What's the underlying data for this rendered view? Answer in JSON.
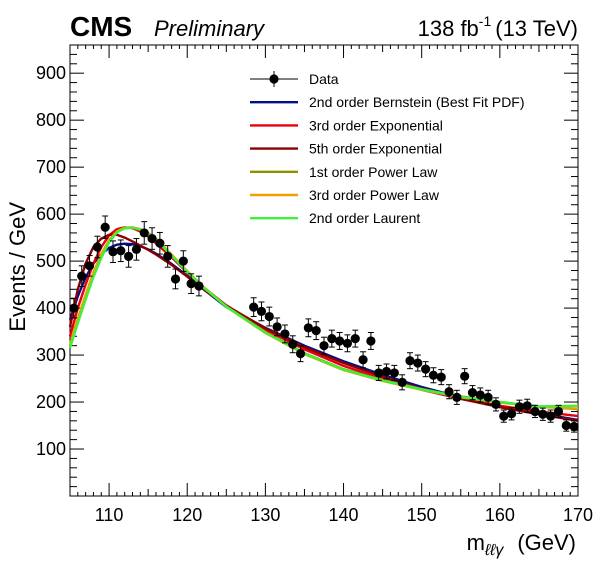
{
  "header": {
    "experiment": "CMS",
    "status": "Preliminary",
    "lumi_value": "138 fb",
    "lumi_exp": "-1",
    "energy": "(13 TeV)"
  },
  "chart_data": {
    "type": "scatter",
    "xlabel_main": "m",
    "xlabel_sub": "ℓℓγ",
    "xlabel_unit": "(GeV)",
    "ylabel": "Events / GeV",
    "xlim": [
      105,
      170
    ],
    "ylim": [
      0,
      960
    ],
    "x_ticks": [
      110,
      120,
      130,
      140,
      150,
      160,
      170
    ],
    "y_ticks": [
      100,
      200,
      300,
      400,
      500,
      600,
      700,
      800,
      900
    ],
    "grid": false,
    "legend_position": "top-right",
    "data": {
      "name": "Data",
      "color": "#000000",
      "x": [
        105.5,
        106.5,
        107.5,
        108.5,
        109.5,
        110.5,
        111.5,
        112.5,
        113.5,
        114.5,
        115.5,
        116.5,
        117.5,
        118.5,
        119.5,
        120.5,
        121.5,
        128.5,
        129.5,
        130.5,
        131.5,
        132.5,
        133.5,
        134.5,
        135.5,
        136.5,
        137.5,
        138.5,
        139.5,
        140.5,
        141.5,
        142.5,
        143.5,
        144.5,
        145.5,
        146.5,
        147.5,
        148.5,
        149.5,
        150.5,
        151.5,
        152.5,
        153.5,
        154.5,
        155.5,
        156.5,
        157.5,
        158.5,
        159.5,
        160.5,
        161.5,
        162.5,
        163.5,
        164.5,
        165.5,
        166.5,
        167.5,
        168.5,
        169.5
      ],
      "y": [
        400,
        468,
        490,
        530,
        572,
        520,
        522,
        510,
        525,
        560,
        548,
        538,
        510,
        462,
        500,
        452,
        447,
        402,
        393,
        382,
        360,
        345,
        323,
        303,
        358,
        352,
        320,
        335,
        330,
        325,
        335,
        290,
        330,
        262,
        265,
        262,
        242,
        288,
        283,
        270,
        257,
        253,
        222,
        210,
        255,
        220,
        215,
        210,
        195,
        170,
        175,
        190,
        192,
        180,
        174,
        170,
        180,
        150,
        148
      ],
      "err": [
        21,
        22,
        22,
        23,
        24,
        23,
        23,
        23,
        23,
        24,
        23,
        23,
        23,
        21,
        22,
        21,
        21,
        20,
        20,
        20,
        19,
        19,
        18,
        17,
        19,
        19,
        18,
        18,
        18,
        18,
        18,
        17,
        18,
        16,
        16,
        16,
        16,
        17,
        17,
        16,
        16,
        16,
        15,
        15,
        16,
        15,
        15,
        15,
        14,
        13,
        13,
        14,
        14,
        13,
        13,
        13,
        13,
        12,
        12
      ]
    },
    "series": [
      {
        "name": "2nd order Bernstein (Best Fit PDF)",
        "color": "#000e8a",
        "x": [
          105,
          106,
          107,
          108,
          109,
          110,
          111,
          112,
          113,
          114,
          115,
          116,
          118,
          120,
          122,
          125,
          130,
          135,
          140,
          145,
          150,
          155,
          160,
          165,
          170
        ],
        "y": [
          375,
          425,
          465,
          495,
          515,
          528,
          535,
          537,
          536,
          532,
          525,
          516,
          494,
          469,
          441,
          402,
          358,
          320,
          287,
          258,
          232,
          210,
          191,
          176,
          162
        ]
      },
      {
        "name": "3rd order Exponential",
        "color": "#e8000b",
        "x": [
          105,
          106,
          107,
          108,
          109,
          110,
          111,
          112,
          113,
          114,
          115,
          116,
          118,
          120,
          122,
          125,
          130,
          135,
          140,
          145,
          150,
          155,
          160,
          165,
          170
        ],
        "y": [
          340,
          400,
          450,
          495,
          530,
          555,
          568,
          572,
          570,
          563,
          552,
          538,
          508,
          476,
          445,
          406,
          354,
          312,
          277,
          249,
          226,
          207,
          192,
          180,
          170
        ]
      },
      {
        "name": "5th order Exponential",
        "color": "#8b0000",
        "x": [
          105,
          106,
          107,
          108,
          109,
          110,
          111,
          112,
          113,
          114,
          115,
          116,
          118,
          120,
          122,
          125,
          130,
          135,
          140,
          145,
          150,
          155,
          160,
          165,
          170
        ],
        "y": [
          360,
          440,
          495,
          530,
          548,
          556,
          556,
          550,
          542,
          533,
          524,
          514,
          492,
          467,
          441,
          405,
          357,
          317,
          283,
          254,
          228,
          207,
          189,
          174,
          160
        ]
      },
      {
        "name": "1st order Power Law",
        "color": "#8f8f00",
        "x": [
          105,
          106,
          107,
          108,
          109,
          110,
          111,
          112,
          113,
          114,
          115,
          116,
          118,
          120,
          122,
          125,
          130,
          135,
          140,
          145,
          150,
          155,
          160,
          165,
          170
        ],
        "y": [
          318,
          372,
          420,
          470,
          510,
          542,
          562,
          570,
          571,
          567,
          558,
          546,
          512,
          478,
          446,
          404,
          349,
          304,
          270,
          247,
          228,
          212,
          200,
          190,
          185
        ]
      },
      {
        "name": "3rd order Power Law",
        "color": "#f0a000",
        "x": [
          105,
          106,
          107,
          108,
          109,
          110,
          111,
          112,
          113,
          114,
          115,
          116,
          118,
          120,
          122,
          125,
          130,
          135,
          140,
          145,
          150,
          155,
          160,
          165,
          170
        ],
        "y": [
          322,
          378,
          428,
          476,
          515,
          545,
          563,
          571,
          572,
          568,
          560,
          548,
          514,
          479,
          446,
          403,
          347,
          302,
          268,
          245,
          226,
          210,
          199,
          190,
          186
        ]
      },
      {
        "name": "2nd order Laurent",
        "color": "#3ef03e",
        "x": [
          105,
          106,
          107,
          108,
          109,
          110,
          111,
          112,
          113,
          114,
          115,
          116,
          118,
          120,
          122,
          125,
          130,
          135,
          140,
          145,
          150,
          155,
          160,
          165,
          170
        ],
        "y": [
          315,
          368,
          418,
          466,
          507,
          540,
          561,
          570,
          571,
          567,
          558,
          546,
          512,
          477,
          445,
          403,
          348,
          303,
          269,
          246,
          227,
          211,
          200,
          191,
          192
        ]
      }
    ]
  }
}
